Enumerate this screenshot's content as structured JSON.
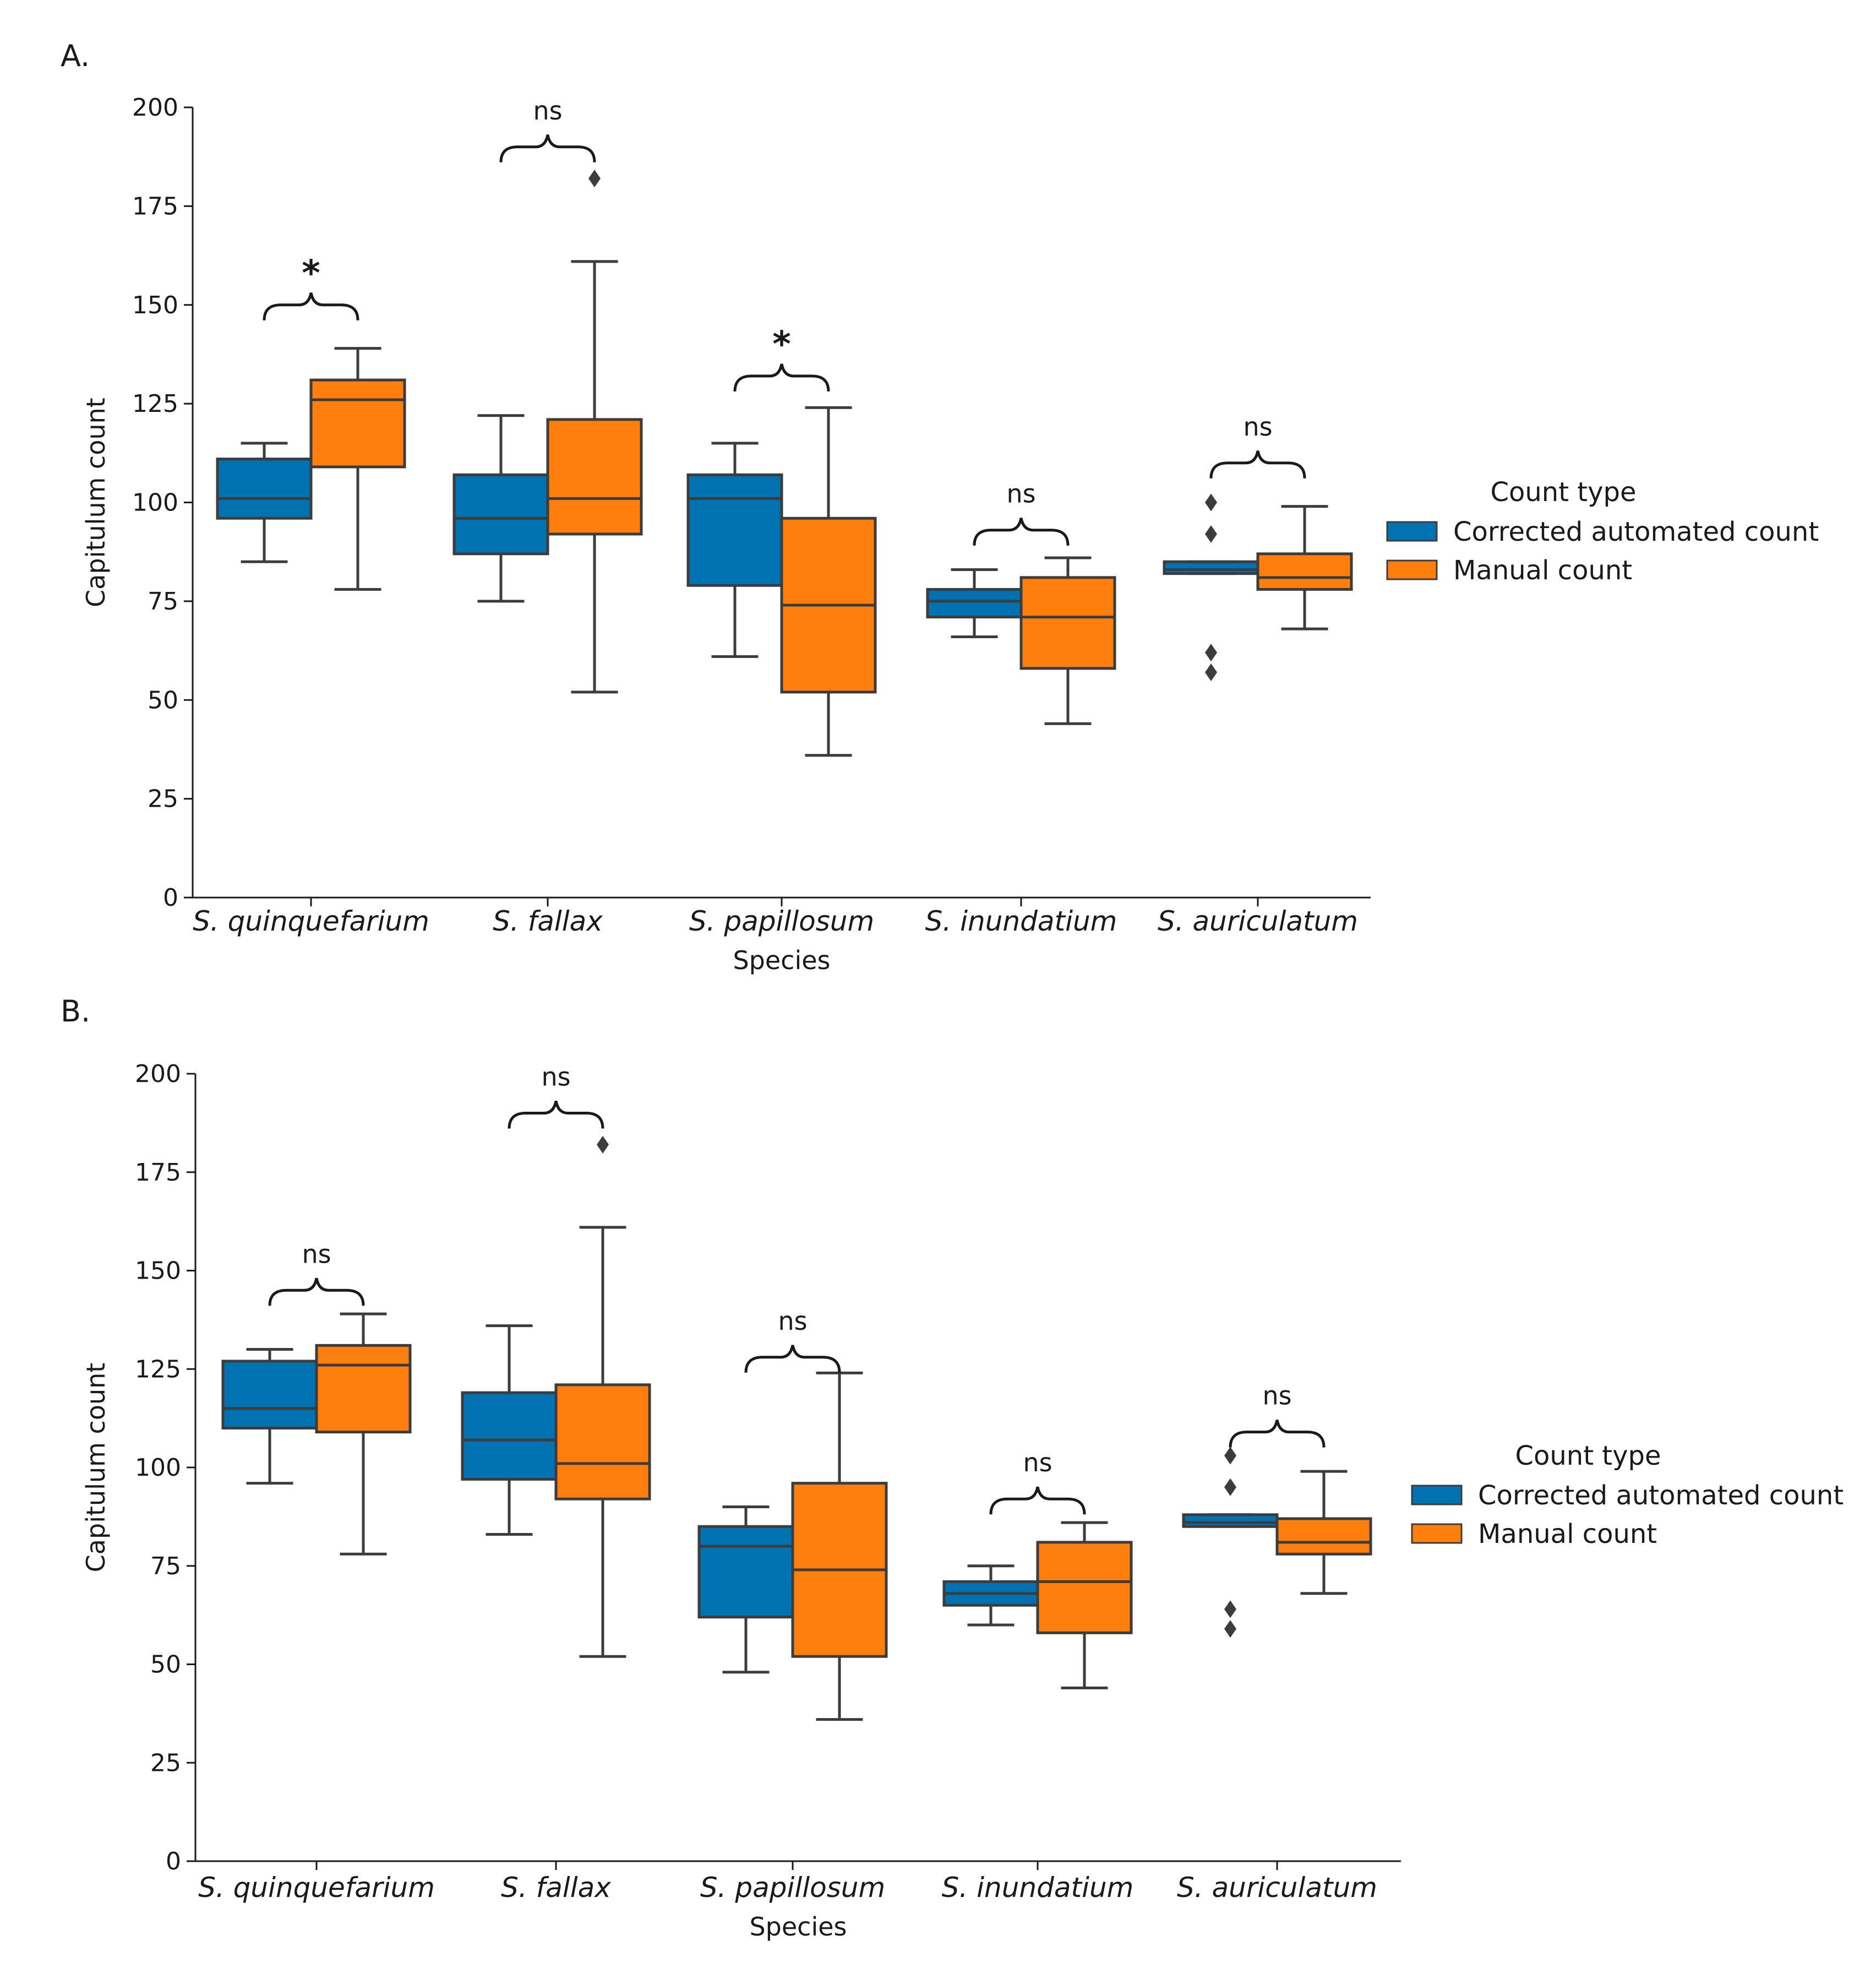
{
  "colors": {
    "corrected": "#0072b2",
    "manual": "#ff7f0e",
    "line": "#3c3c3c",
    "axis": "#1a1a1a"
  },
  "chart_data": [
    {
      "type": "box",
      "panel_label": "A.",
      "xlabel": "Species",
      "ylabel": "Capitulum count",
      "ylim": [
        0,
        200
      ],
      "yticks": [
        "0",
        "25",
        "50",
        "75",
        "100",
        "125",
        "150",
        "175",
        "200"
      ],
      "ytick_values": [
        0,
        25,
        50,
        75,
        100,
        125,
        150,
        175,
        200
      ],
      "categories": [
        "S. quinquefarium",
        "S. fallax",
        "S. papillosum",
        "S. inundatium",
        "S. auriculatum"
      ],
      "legend": {
        "title": "Count type",
        "entries": [
          "Corrected automated count",
          "Manual count"
        ],
        "placement": "right"
      },
      "series": [
        {
          "name": "Corrected automated count",
          "boxes": [
            {
              "whislo": 85,
              "q1": 96,
              "med": 101,
              "q3": 111,
              "whishi": 115,
              "fliers": []
            },
            {
              "whislo": 75,
              "q1": 87,
              "med": 96,
              "q3": 107,
              "whishi": 122,
              "fliers": []
            },
            {
              "whislo": 61,
              "q1": 79,
              "med": 101,
              "q3": 107,
              "whishi": 115,
              "fliers": []
            },
            {
              "whislo": 66,
              "q1": 71,
              "med": 75,
              "q3": 78,
              "whishi": 83,
              "fliers": []
            },
            {
              "whislo": 82,
              "q1": 82,
              "med": 83,
              "q3": 85,
              "whishi": 85,
              "fliers": [
                100,
                92,
                62,
                57
              ]
            }
          ]
        },
        {
          "name": "Manual count",
          "boxes": [
            {
              "whislo": 78,
              "q1": 109,
              "med": 126,
              "q3": 131,
              "whishi": 139,
              "fliers": []
            },
            {
              "whislo": 52,
              "q1": 92,
              "med": 101,
              "q3": 121,
              "whishi": 161,
              "fliers": [
                182
              ]
            },
            {
              "whislo": 36,
              "q1": 52,
              "med": 74,
              "q3": 96,
              "whishi": 124,
              "fliers": []
            },
            {
              "whislo": 44,
              "q1": 58,
              "med": 71,
              "q3": 81,
              "whishi": 86,
              "fliers": []
            },
            {
              "whislo": 68,
              "q1": 78,
              "med": 81,
              "q3": 87,
              "whishi": 99,
              "fliers": []
            }
          ]
        }
      ],
      "annotations": [
        {
          "category": "S. quinquefarium",
          "label": "*",
          "y": 150
        },
        {
          "category": "S. fallax",
          "label": "ns",
          "y": 190
        },
        {
          "category": "S. papillosum",
          "label": "*",
          "y": 132
        },
        {
          "category": "S. inundatium",
          "label": "ns",
          "y": 93
        },
        {
          "category": "S. auriculatum",
          "label": "ns",
          "y": 110
        }
      ]
    },
    {
      "type": "box",
      "panel_label": "B.",
      "xlabel": "Species",
      "ylabel": "Capitulum count",
      "ylim": [
        0,
        200
      ],
      "yticks": [
        "0",
        "25",
        "50",
        "75",
        "100",
        "125",
        "150",
        "175",
        "200"
      ],
      "ytick_values": [
        0,
        25,
        50,
        75,
        100,
        125,
        150,
        175,
        200
      ],
      "categories": [
        "S. quinquefarium",
        "S. fallax",
        "S. papillosum",
        "S. inundatium",
        "S. auriculatum"
      ],
      "legend": {
        "title": "Count type",
        "entries": [
          "Corrected automated count",
          "Manual count"
        ],
        "placement": "right"
      },
      "series": [
        {
          "name": "Corrected automated count",
          "boxes": [
            {
              "whislo": 96,
              "q1": 110,
              "med": 115,
              "q3": 127,
              "whishi": 130,
              "fliers": []
            },
            {
              "whislo": 83,
              "q1": 97,
              "med": 107,
              "q3": 119,
              "whishi": 136,
              "fliers": []
            },
            {
              "whislo": 48,
              "q1": 62,
              "med": 80,
              "q3": 85,
              "whishi": 90,
              "fliers": []
            },
            {
              "whislo": 60,
              "q1": 65,
              "med": 68,
              "q3": 71,
              "whishi": 75,
              "fliers": []
            },
            {
              "whislo": 85,
              "q1": 85,
              "med": 86,
              "q3": 88,
              "whishi": 88,
              "fliers": [
                103,
                95,
                64,
                59
              ]
            }
          ]
        },
        {
          "name": "Manual count",
          "boxes": [
            {
              "whislo": 78,
              "q1": 109,
              "med": 126,
              "q3": 131,
              "whishi": 139,
              "fliers": []
            },
            {
              "whislo": 52,
              "q1": 92,
              "med": 101,
              "q3": 121,
              "whishi": 161,
              "fliers": [
                182
              ]
            },
            {
              "whislo": 36,
              "q1": 52,
              "med": 74,
              "q3": 96,
              "whishi": 124,
              "fliers": []
            },
            {
              "whislo": 44,
              "q1": 58,
              "med": 71,
              "q3": 81,
              "whishi": 86,
              "fliers": []
            },
            {
              "whislo": 68,
              "q1": 78,
              "med": 81,
              "q3": 87,
              "whishi": 99,
              "fliers": []
            }
          ]
        }
      ],
      "annotations": [
        {
          "category": "S. quinquefarium",
          "label": "ns",
          "y": 145
        },
        {
          "category": "S. fallax",
          "label": "ns",
          "y": 190
        },
        {
          "category": "S. papillosum",
          "label": "ns",
          "y": 128
        },
        {
          "category": "S. inundatium",
          "label": "ns",
          "y": 92
        },
        {
          "category": "S. auriculatum",
          "label": "ns",
          "y": 109
        }
      ]
    }
  ]
}
